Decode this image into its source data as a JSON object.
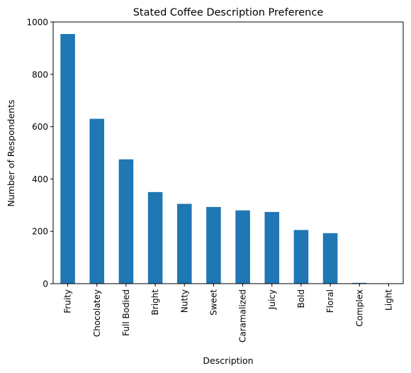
{
  "chart_data": {
    "type": "bar",
    "title": "Stated Coffee Description Preference",
    "xlabel": "Description",
    "ylabel": "Number of Respondents",
    "categories": [
      "Fruity",
      "Chocolatey",
      "Full Bodied",
      "Bright",
      "Nutty",
      "Sweet",
      "Caramalized",
      "Juicy",
      "Bold",
      "Floral",
      "Complex",
      "Light"
    ],
    "values": [
      954,
      630,
      475,
      350,
      305,
      293,
      280,
      274,
      205,
      193,
      3,
      1
    ],
    "ylim": [
      0,
      1000
    ],
    "yticks": [
      0,
      200,
      400,
      600,
      800,
      1000
    ],
    "grid": false,
    "legend": "none",
    "bar_color": "#1f77b4"
  }
}
